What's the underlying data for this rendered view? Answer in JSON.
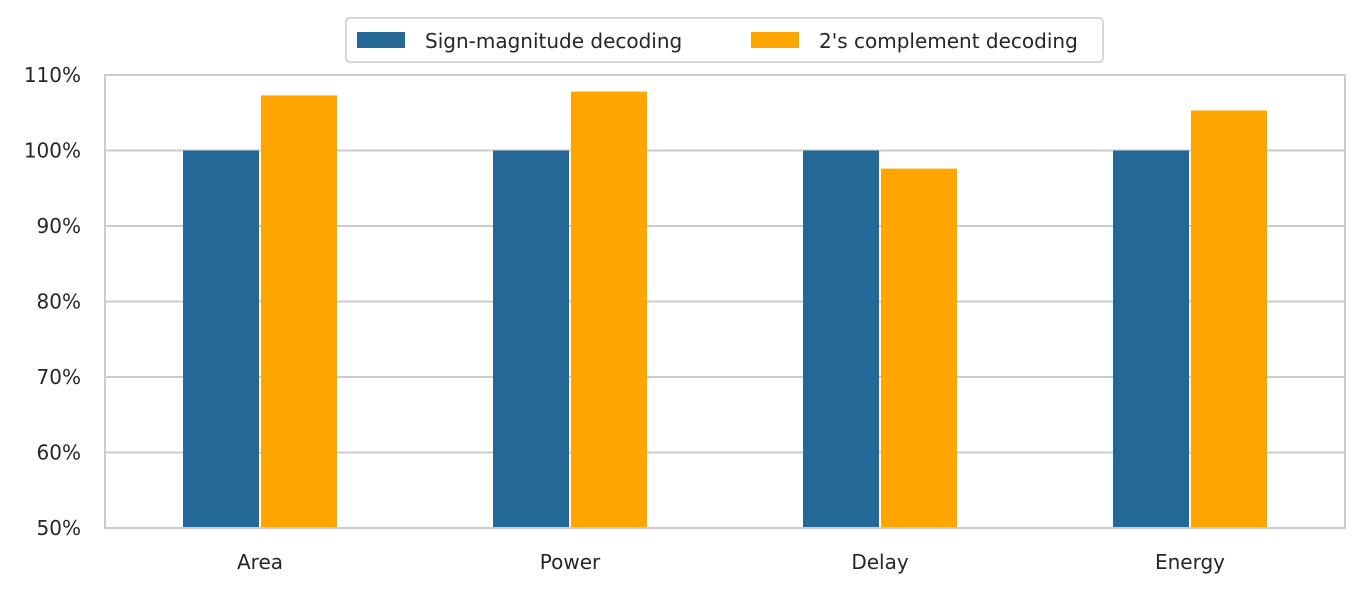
{
  "chart_data": {
    "type": "bar",
    "title": "",
    "xlabel": "",
    "ylabel": "",
    "categories": [
      "Area",
      "Power",
      "Delay",
      "Energy"
    ],
    "series": [
      {
        "name": "Sign-magnitude decoding",
        "values": [
          100,
          100,
          100,
          100
        ],
        "color": "#246897"
      },
      {
        "name": "2's complement decoding",
        "values": [
          107.3,
          107.8,
          97.6,
          105.3
        ],
        "color": "#ffa500"
      }
    ],
    "ylim": [
      50,
      110
    ],
    "yticks": [
      50,
      60,
      70,
      80,
      90,
      100,
      110
    ],
    "ytick_suffix": "%",
    "grid": "horizontal",
    "legend_position": "top-center",
    "colors": {
      "grid": "#cccccc",
      "frame": "#cccccc",
      "text": "#262626",
      "legend_border": "#cccccc"
    }
  }
}
